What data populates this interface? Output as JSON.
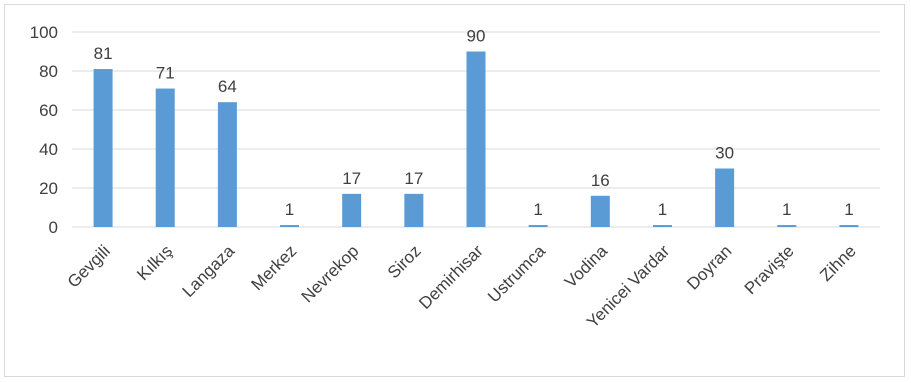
{
  "chart_data": {
    "type": "bar",
    "categories": [
      "Gevgili",
      "Kılkış",
      "Langaza",
      "Merkez",
      "Nevrekop",
      "Siroz",
      "Demirhisar",
      "Ustrumca",
      "Vodina",
      "Yenicei Vardar",
      "Doyran",
      "Pravişte",
      "Zihne"
    ],
    "values": [
      81,
      71,
      64,
      1,
      17,
      17,
      90,
      1,
      16,
      1,
      30,
      1,
      1
    ],
    "data_labels": [
      "81",
      "71",
      "64",
      "1",
      "17",
      "17",
      "90",
      "1",
      "16",
      "1",
      "30",
      "1",
      "1"
    ],
    "yticks": [
      "0",
      "20",
      "40",
      "60",
      "80",
      "100"
    ],
    "ylim": [
      0,
      100
    ],
    "title": "",
    "xlabel": "",
    "ylabel": "",
    "grid": true,
    "colors": {
      "bar": "#5b9bd5",
      "grid": "#d9d9d9",
      "text": "#404040"
    }
  }
}
